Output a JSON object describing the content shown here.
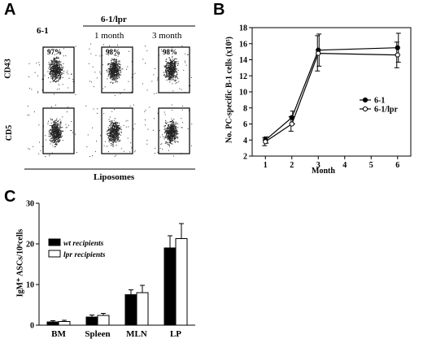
{
  "panels": {
    "a": "A",
    "b": "B",
    "c": "C"
  },
  "panel_a": {
    "col_6_1": "6-1",
    "col_lpr_group": "6-1/lpr",
    "col_1_month": "1 month",
    "col_3_month": "3 month",
    "row_cd43": "CD43",
    "row_cd5": "CD5",
    "x_label": "Liposomes",
    "gate_pcts": [
      "97%",
      "98%",
      "98%"
    ]
  },
  "chart_data": [
    {
      "type": "line",
      "x": [
        1,
        2,
        3,
        6
      ],
      "series": [
        {
          "name": "6-1",
          "values": [
            4.0,
            6.8,
            15.2,
            15.5
          ],
          "errors": [
            0.4,
            0.8,
            2.0,
            1.8
          ]
        },
        {
          "name": "6-1/lpr",
          "values": [
            3.8,
            6.0,
            14.8,
            14.6
          ],
          "errors": [
            0.5,
            0.9,
            2.2,
            1.6
          ]
        }
      ],
      "xlabel": "Month",
      "ylabel": "No. PC-specific B-1 cells (x10⁵)",
      "x_ticks": [
        1,
        2,
        3,
        4,
        5,
        6
      ],
      "y_ticks": [
        2,
        4,
        6,
        8,
        10,
        12,
        14,
        16,
        18
      ],
      "xlim": [
        0.5,
        6.5
      ],
      "ylim": [
        2,
        18
      ],
      "legend_position": "right",
      "grid": false
    },
    {
      "type": "bar",
      "categories": [
        "BM",
        "Spleen",
        "MLN",
        "LP"
      ],
      "series": [
        {
          "name": "wt recipients",
          "values": [
            0.8,
            2.0,
            7.5,
            19.0
          ],
          "errors": [
            0.3,
            0.5,
            1.2,
            3.0
          ],
          "color": "#000000"
        },
        {
          "name": "lpr recipients",
          "values": [
            0.9,
            2.4,
            8.0,
            21.3
          ],
          "errors": [
            0.3,
            0.5,
            1.8,
            3.7
          ],
          "color": "#ffffff"
        }
      ],
      "ylabel": "IgM⁺ ASCs/10⁶cells",
      "y_ticks": [
        0,
        10,
        20,
        30
      ],
      "ylim": [
        0,
        30
      ],
      "legend_position": "top-left",
      "grid": false
    }
  ]
}
